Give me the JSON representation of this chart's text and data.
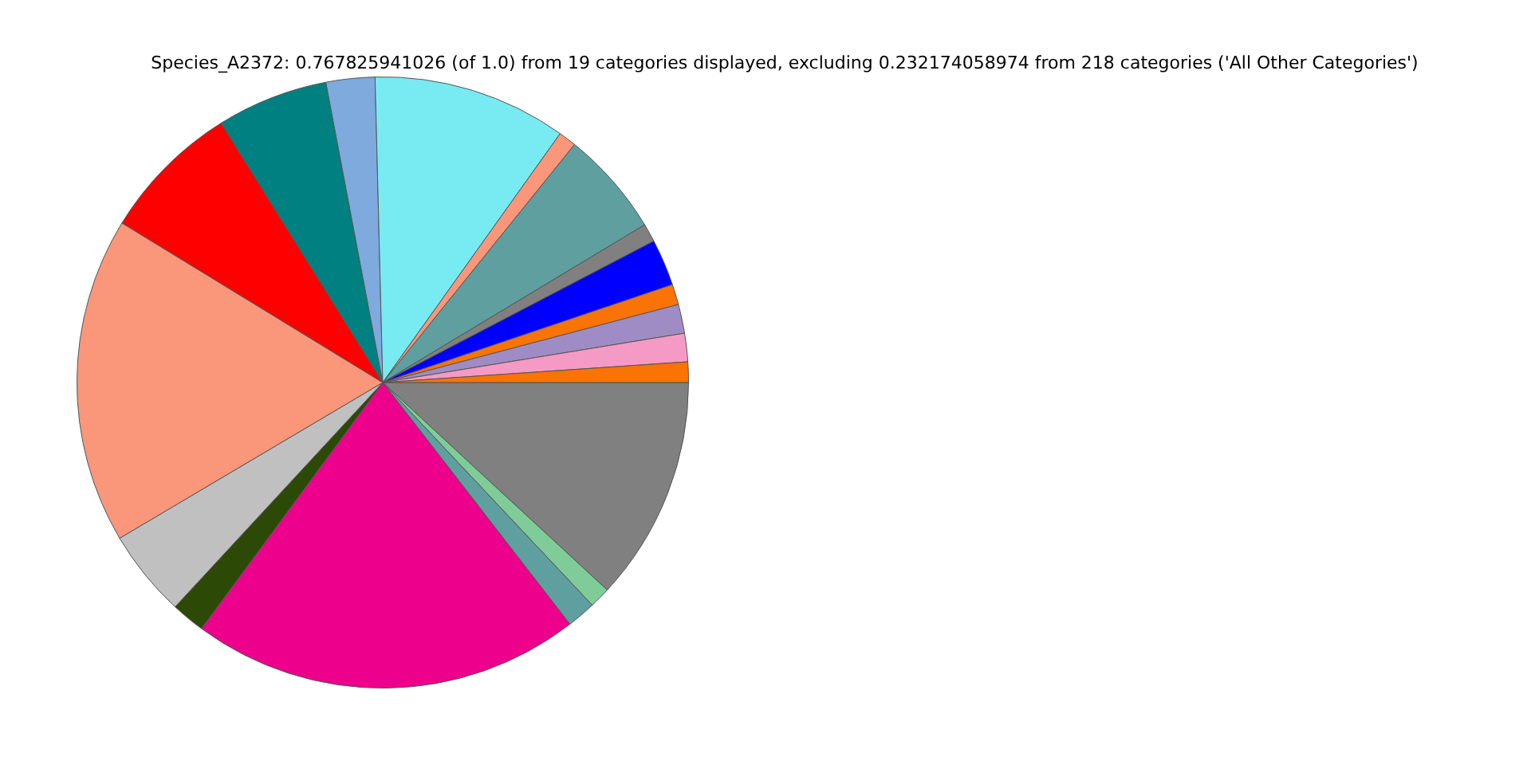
{
  "chart_data": {
    "type": "pie",
    "title": "Species_A2372: 0.767825941026 (of 1.0) from 19 categories displayed, excluding 0.232174058974 from 218 categories ('All Other Categories')",
    "categories": [
      null,
      null,
      null,
      null,
      null,
      null,
      null,
      null,
      null,
      null,
      null,
      null,
      null,
      null,
      null,
      null,
      null,
      null,
      null
    ],
    "values": [
      11.88,
      1.11,
      1.53,
      20.58,
      1.78,
      4.61,
      17.25,
      7.39,
      5.89,
      2.58,
      10.25,
      0.94,
      5.58,
      0.97,
      2.47,
      1.08,
      1.53,
      1.5,
      1.08
    ],
    "colors": [
      "#808080",
      "#80cc99",
      "#5f9f9f",
      "#ed008c",
      "#2c4a06",
      "#c0c0c0",
      "#fa967a",
      "#ff0000",
      "#008080",
      "#7eaadd",
      "#78eaf2",
      "#fa967a",
      "#5f9f9f",
      "#808080",
      "#0000ff",
      "#f97306",
      "#a08cc4",
      "#f59ac4",
      "#f97306"
    ]
  }
}
